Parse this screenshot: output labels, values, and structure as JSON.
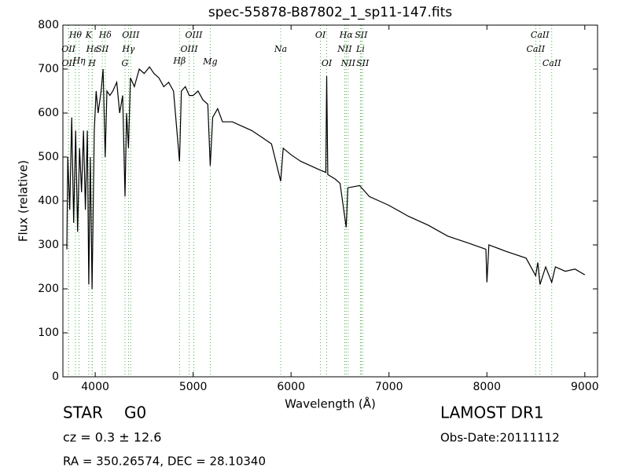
{
  "chart_data": {
    "type": "line",
    "title": "spec-55878-B87802_1_sp11-147.fits",
    "x_label": "Wavelength (Å)",
    "y_label": "Flux (relative)",
    "color": "#000000",
    "line_color": "#4cae4c",
    "x": [
      3710,
      3720,
      3740,
      3760,
      3780,
      3800,
      3820,
      3840,
      3860,
      3880,
      3900,
      3920,
      3934,
      3950,
      3968,
      3990,
      4010,
      4030,
      4060,
      4080,
      4102,
      4120,
      4150,
      4180,
      4220,
      4250,
      4280,
      4304,
      4320,
      4340,
      4360,
      4400,
      4450,
      4500,
      4555,
      4600,
      4650,
      4700,
      4750,
      4800,
      4861,
      4880,
      4920,
      4960,
      5000,
      5050,
      5100,
      5150,
      5175,
      5200,
      5250,
      5300,
      5400,
      5500,
      5600,
      5700,
      5800,
      5894,
      5920,
      6000,
      6100,
      6200,
      6300,
      6355,
      6364,
      6375,
      6450,
      6500,
      6563,
      6580,
      6700,
      6800,
      6900,
      7000,
      7200,
      7400,
      7600,
      7800,
      7990,
      8000,
      8020,
      8200,
      8400,
      8498,
      8520,
      8542,
      8600,
      8662,
      8700,
      8800,
      8900,
      9000
    ],
    "values": [
      290,
      500,
      380,
      590,
      350,
      560,
      330,
      520,
      420,
      560,
      380,
      560,
      210,
      500,
      200,
      560,
      650,
      600,
      650,
      700,
      500,
      650,
      640,
      650,
      670,
      600,
      640,
      410,
      600,
      520,
      680,
      660,
      700,
      690,
      705,
      690,
      680,
      660,
      670,
      650,
      490,
      650,
      660,
      640,
      640,
      650,
      630,
      620,
      480,
      590,
      610,
      580,
      580,
      570,
      560,
      545,
      530,
      445,
      520,
      505,
      490,
      480,
      470,
      465,
      684,
      460,
      450,
      440,
      340,
      430,
      435,
      410,
      400,
      390,
      365,
      345,
      320,
      305,
      290,
      215,
      300,
      285,
      270,
      230,
      260,
      210,
      250,
      215,
      250,
      240,
      245,
      232
    ],
    "xlim": [
      3670,
      9130
    ],
    "ylim": [
      0,
      800
    ],
    "xticks": [
      4000,
      5000,
      6000,
      7000,
      8000,
      9000
    ],
    "yticks": [
      0,
      100,
      200,
      300,
      400,
      500,
      600,
      700,
      800
    ],
    "lines": [
      {
        "label": "OII",
        "wavelength": 3727
      },
      {
        "label": "OII",
        "wavelength": 3729
      },
      {
        "label": "Hθ",
        "wavelength": 3798
      },
      {
        "label": "Hη",
        "wavelength": 3835
      },
      {
        "label": "K",
        "wavelength": 3934
      },
      {
        "label": "Hε",
        "wavelength": 3970
      },
      {
        "label": "H",
        "wavelength": 3968
      },
      {
        "label": "SII",
        "wavelength": 4072
      },
      {
        "label": "Hδ",
        "wavelength": 4102
      },
      {
        "label": "G",
        "wavelength": 4304
      },
      {
        "label": "Hγ",
        "wavelength": 4340
      },
      {
        "label": "OIII",
        "wavelength": 4363
      },
      {
        "label": "Hβ",
        "wavelength": 4861
      },
      {
        "label": "OIII",
        "wavelength": 4959
      },
      {
        "label": "OIII",
        "wavelength": 5007
      },
      {
        "label": "Mg",
        "wavelength": 5175
      },
      {
        "label": "Na",
        "wavelength": 5894
      },
      {
        "label": "OI",
        "wavelength": 6300
      },
      {
        "label": "OI",
        "wavelength": 6364
      },
      {
        "label": "NII",
        "wavelength": 6548
      },
      {
        "label": "Hα",
        "wavelength": 6563
      },
      {
        "label": "NII",
        "wavelength": 6583
      },
      {
        "label": "Li",
        "wavelength": 6708
      },
      {
        "label": "SII",
        "wavelength": 6716
      },
      {
        "label": "SII",
        "wavelength": 6731
      },
      {
        "label": "CaII",
        "wavelength": 8498
      },
      {
        "label": "CaII",
        "wavelength": 8542
      },
      {
        "label": "CaII",
        "wavelength": 8662
      }
    ],
    "annotations": [
      "STAR",
      "G0",
      "LAMOST DR1",
      "cz = 0.3 ± 12.6",
      "Obs-Date:20111112",
      "RA = 350.26574, DEC = 28.10340"
    ]
  }
}
